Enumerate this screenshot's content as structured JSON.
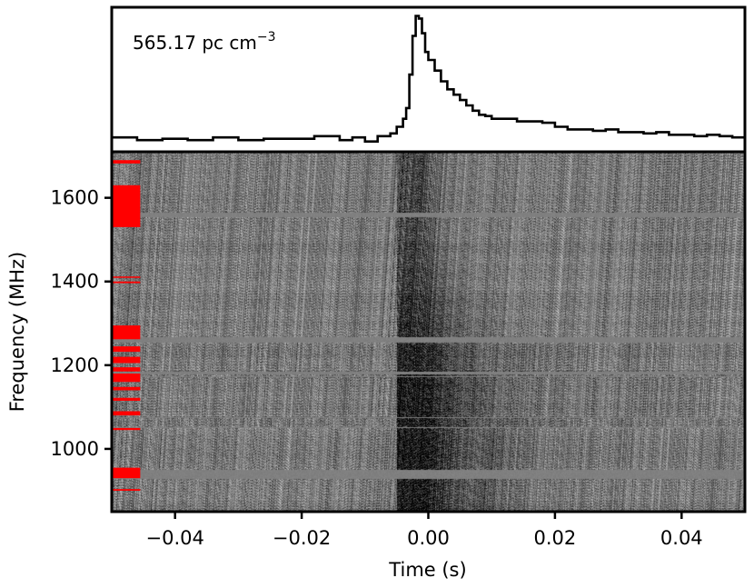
{
  "chart_data": [
    {
      "type": "line",
      "panel": "pulse-profile",
      "annotation": {
        "value": "565.17 pc cm",
        "exponent": "−3"
      },
      "xlim": [
        -0.05,
        0.05
      ],
      "x_units": "s",
      "steps": [
        {
          "x": -0.05,
          "y": 0.08
        },
        {
          "x": -0.046,
          "y": 0.06
        },
        {
          "x": -0.042,
          "y": 0.07
        },
        {
          "x": -0.038,
          "y": 0.06
        },
        {
          "x": -0.034,
          "y": 0.08
        },
        {
          "x": -0.03,
          "y": 0.06
        },
        {
          "x": -0.026,
          "y": 0.07
        },
        {
          "x": -0.022,
          "y": 0.07
        },
        {
          "x": -0.018,
          "y": 0.09
        },
        {
          "x": -0.014,
          "y": 0.06
        },
        {
          "x": -0.012,
          "y": 0.08
        },
        {
          "x": -0.01,
          "y": 0.05
        },
        {
          "x": -0.008,
          "y": 0.09
        },
        {
          "x": -0.006,
          "y": 0.11
        },
        {
          "x": -0.005,
          "y": 0.16
        },
        {
          "x": -0.004,
          "y": 0.22
        },
        {
          "x": -0.0035,
          "y": 0.3
        },
        {
          "x": -0.003,
          "y": 0.55
        },
        {
          "x": -0.0025,
          "y": 0.84
        },
        {
          "x": -0.002,
          "y": 0.99
        },
        {
          "x": -0.0015,
          "y": 0.97
        },
        {
          "x": -0.001,
          "y": 0.86
        },
        {
          "x": -0.0005,
          "y": 0.72
        },
        {
          "x": 0.0,
          "y": 0.66
        },
        {
          "x": 0.001,
          "y": 0.58
        },
        {
          "x": 0.002,
          "y": 0.5
        },
        {
          "x": 0.003,
          "y": 0.44
        },
        {
          "x": 0.004,
          "y": 0.4
        },
        {
          "x": 0.005,
          "y": 0.36
        },
        {
          "x": 0.006,
          "y": 0.32
        },
        {
          "x": 0.007,
          "y": 0.28
        },
        {
          "x": 0.008,
          "y": 0.25
        },
        {
          "x": 0.009,
          "y": 0.24
        },
        {
          "x": 0.01,
          "y": 0.22
        },
        {
          "x": 0.012,
          "y": 0.22
        },
        {
          "x": 0.014,
          "y": 0.2
        },
        {
          "x": 0.016,
          "y": 0.2
        },
        {
          "x": 0.018,
          "y": 0.19
        },
        {
          "x": 0.02,
          "y": 0.16
        },
        {
          "x": 0.022,
          "y": 0.14
        },
        {
          "x": 0.024,
          "y": 0.14
        },
        {
          "x": 0.026,
          "y": 0.13
        },
        {
          "x": 0.028,
          "y": 0.14
        },
        {
          "x": 0.03,
          "y": 0.12
        },
        {
          "x": 0.032,
          "y": 0.12
        },
        {
          "x": 0.034,
          "y": 0.11
        },
        {
          "x": 0.036,
          "y": 0.12
        },
        {
          "x": 0.038,
          "y": 0.1
        },
        {
          "x": 0.04,
          "y": 0.1
        },
        {
          "x": 0.042,
          "y": 0.09
        },
        {
          "x": 0.044,
          "y": 0.1
        },
        {
          "x": 0.046,
          "y": 0.09
        },
        {
          "x": 0.048,
          "y": 0.08
        },
        {
          "x": 0.05,
          "y": 0.07
        }
      ]
    },
    {
      "type": "heatmap",
      "panel": "dynamic-spectrum",
      "xlabel": "Time (s)",
      "ylabel": "Frequency (MHz)",
      "xlim": [
        -0.05,
        0.05
      ],
      "ylim": [
        850,
        1710
      ],
      "xticks": [
        {
          "value": -0.04,
          "label": "−0.04"
        },
        {
          "value": -0.02,
          "label": "−0.02"
        },
        {
          "value": 0.0,
          "label": "0.00"
        },
        {
          "value": 0.02,
          "label": "0.02"
        },
        {
          "value": 0.04,
          "label": "0.04"
        }
      ],
      "yticks": [
        {
          "value": 1000,
          "label": "1000"
        },
        {
          "value": 1200,
          "label": "1200"
        },
        {
          "value": 1400,
          "label": "1400"
        },
        {
          "value": 1600,
          "label": "1600"
        }
      ],
      "colormap": "gray",
      "burst": {
        "center_time": -0.002,
        "width": 0.006,
        "tail_time": 0.008
      },
      "flagged_channels_mhz": [
        [
          1530,
          1630
        ],
        [
          1682,
          1690
        ],
        [
          1396,
          1400
        ],
        [
          1410,
          1412
        ],
        [
          1262,
          1295
        ],
        [
          1232,
          1245
        ],
        [
          1205,
          1220
        ],
        [
          1185,
          1195
        ],
        [
          1160,
          1180
        ],
        [
          1140,
          1148
        ],
        [
          1115,
          1122
        ],
        [
          1080,
          1090
        ],
        [
          1045,
          1050
        ],
        [
          930,
          955
        ],
        [
          900,
          904
        ]
      ],
      "masked_bands_mhz": [
        [
          1555,
          1565
        ],
        [
          1255,
          1268
        ],
        [
          1178,
          1186
        ],
        [
          1172,
          1174
        ],
        [
          1075,
          1078
        ],
        [
          1050,
          1052
        ],
        [
          930,
          950
        ]
      ],
      "colors": {
        "flag": "#ff0000",
        "mask": "#888888",
        "line": "#000000"
      }
    }
  ]
}
